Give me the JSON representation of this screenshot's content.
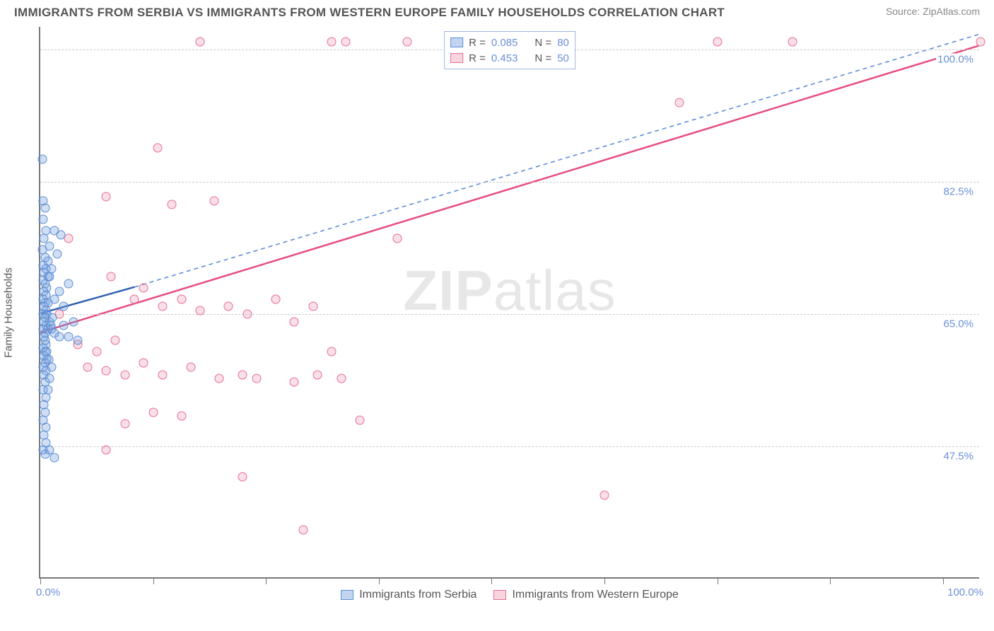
{
  "header": {
    "title": "IMMIGRANTS FROM SERBIA VS IMMIGRANTS FROM WESTERN EUROPE FAMILY HOUSEHOLDS CORRELATION CHART",
    "source_prefix": "Source: ",
    "source_name": "ZipAtlas.com"
  },
  "watermark": {
    "part1": "ZIP",
    "part2": "atlas"
  },
  "axes": {
    "y_title": "Family Households",
    "x_min_label": "0.0%",
    "x_max_label": "100.0%",
    "xlim": [
      0,
      100
    ],
    "ylim": [
      30,
      103
    ],
    "xtick_positions": [
      0,
      12,
      24,
      36,
      48,
      60,
      72,
      84,
      96
    ],
    "y_gridlines": [
      {
        "value": 47.5,
        "label": "47.5%"
      },
      {
        "value": 65.0,
        "label": "65.0%"
      },
      {
        "value": 82.5,
        "label": "82.5%"
      },
      {
        "value": 100.0,
        "label": "100.0%"
      }
    ],
    "grid_color": "#cccccc",
    "axis_color": "#777777",
    "label_color": "#6a8fd8"
  },
  "legend_top": {
    "rows": [
      {
        "swatch": "blue",
        "r_label": "R =",
        "r_value": "0.085",
        "n_label": "N =",
        "n_value": "80"
      },
      {
        "swatch": "pink",
        "r_label": "R =",
        "r_value": "0.453",
        "n_label": "N =",
        "n_value": "50"
      }
    ]
  },
  "legend_bottom": {
    "items": [
      {
        "swatch": "blue",
        "label": "Immigrants from Serbia"
      },
      {
        "swatch": "pink",
        "label": "Immigrants from Western Europe"
      }
    ]
  },
  "series": {
    "blue": {
      "color_fill": "rgba(120,160,220,0.35)",
      "color_stroke": "#5b8ed6",
      "marker_radius": 6.5,
      "trend_solid": {
        "x1": 0,
        "y1": 65.0,
        "x2": 10,
        "y2": 68.5,
        "stroke": "#2f5fb0",
        "width": 2.5
      },
      "trend_dash": {
        "x1": 10,
        "y1": 68.5,
        "x2": 100,
        "y2": 102.0,
        "stroke": "#5b8ed6",
        "width": 1.6,
        "dash": "6 5"
      },
      "points": [
        [
          0.2,
          85.5
        ],
        [
          0.3,
          80.0
        ],
        [
          0.5,
          79.0
        ],
        [
          0.3,
          77.5
        ],
        [
          0.6,
          76.0
        ],
        [
          0.4,
          75.0
        ],
        [
          0.2,
          73.5
        ],
        [
          0.5,
          72.5
        ],
        [
          0.3,
          71.5
        ],
        [
          0.6,
          71.0
        ],
        [
          0.4,
          70.5
        ],
        [
          0.8,
          70.0
        ],
        [
          0.3,
          69.5
        ],
        [
          0.5,
          69.0
        ],
        [
          0.7,
          68.5
        ],
        [
          0.4,
          68.0
        ],
        [
          0.6,
          67.5
        ],
        [
          0.3,
          67.0
        ],
        [
          0.5,
          66.5
        ],
        [
          0.8,
          66.5
        ],
        [
          0.4,
          66.0
        ],
        [
          0.6,
          65.5
        ],
        [
          0.3,
          65.0
        ],
        [
          0.7,
          65.0
        ],
        [
          0.5,
          64.5
        ],
        [
          0.4,
          64.0
        ],
        [
          1.0,
          64.0
        ],
        [
          0.6,
          63.5
        ],
        [
          0.3,
          63.0
        ],
        [
          0.8,
          63.0
        ],
        [
          1.2,
          63.0
        ],
        [
          0.5,
          62.5
        ],
        [
          1.5,
          62.5
        ],
        [
          0.4,
          62.0
        ],
        [
          2.0,
          62.0
        ],
        [
          2.5,
          63.5
        ],
        [
          3.0,
          62.0
        ],
        [
          3.5,
          64.0
        ],
        [
          4.0,
          61.5
        ],
        [
          0.6,
          61.0
        ],
        [
          0.3,
          60.5
        ],
        [
          0.5,
          60.0
        ],
        [
          0.4,
          59.5
        ],
        [
          0.7,
          59.0
        ],
        [
          0.5,
          58.5
        ],
        [
          0.3,
          58.0
        ],
        [
          0.6,
          57.5
        ],
        [
          0.4,
          57.0
        ],
        [
          0.5,
          56.0
        ],
        [
          0.3,
          55.0
        ],
        [
          0.6,
          54.0
        ],
        [
          0.4,
          53.0
        ],
        [
          0.5,
          52.0
        ],
        [
          0.3,
          51.0
        ],
        [
          0.6,
          50.0
        ],
        [
          1.5,
          67.0
        ],
        [
          2.0,
          68.0
        ],
        [
          2.5,
          66.0
        ],
        [
          3.0,
          69.0
        ],
        [
          1.0,
          70.0
        ],
        [
          1.2,
          71.0
        ],
        [
          1.8,
          73.0
        ],
        [
          2.2,
          75.5
        ],
        [
          0.8,
          72.0
        ],
        [
          1.0,
          74.0
        ],
        [
          1.5,
          76.0
        ],
        [
          0.3,
          47.0
        ],
        [
          0.5,
          46.5
        ],
        [
          1.0,
          47.0
        ],
        [
          1.5,
          46.0
        ],
        [
          0.4,
          49.0
        ],
        [
          0.6,
          48.0
        ],
        [
          0.8,
          55.0
        ],
        [
          1.0,
          56.5
        ],
        [
          1.2,
          58.0
        ],
        [
          0.5,
          61.5
        ],
        [
          0.7,
          60.0
        ],
        [
          0.9,
          59.0
        ],
        [
          1.1,
          63.5
        ],
        [
          1.3,
          64.5
        ]
      ]
    },
    "pink": {
      "color_fill": "rgba(235,150,175,0.30)",
      "color_stroke": "#e86d94",
      "marker_radius": 6.5,
      "trend_solid": {
        "x1": 0,
        "y1": 62.5,
        "x2": 100,
        "y2": 100.5,
        "stroke": "#e64d7d",
        "width": 2.5
      },
      "points": [
        [
          17.0,
          101.0
        ],
        [
          31.0,
          101.0
        ],
        [
          32.5,
          101.0
        ],
        [
          39.0,
          101.0
        ],
        [
          72.0,
          101.0
        ],
        [
          80.0,
          101.0
        ],
        [
          100.0,
          101.0
        ],
        [
          68.0,
          93.0
        ],
        [
          12.5,
          87.0
        ],
        [
          7.0,
          80.5
        ],
        [
          14.0,
          79.5
        ],
        [
          18.5,
          80.0
        ],
        [
          3.0,
          75.0
        ],
        [
          7.5,
          70.0
        ],
        [
          10.0,
          67.0
        ],
        [
          11.0,
          68.5
        ],
        [
          13.0,
          66.0
        ],
        [
          15.0,
          67.0
        ],
        [
          17.0,
          65.5
        ],
        [
          20.0,
          66.0
        ],
        [
          22.0,
          65.0
        ],
        [
          25.0,
          67.0
        ],
        [
          27.0,
          64.0
        ],
        [
          29.0,
          66.0
        ],
        [
          38.0,
          75.0
        ],
        [
          31.0,
          60.0
        ],
        [
          4.0,
          61.0
        ],
        [
          6.0,
          60.0
        ],
        [
          8.0,
          61.5
        ],
        [
          5.0,
          58.0
        ],
        [
          7.0,
          57.5
        ],
        [
          9.0,
          57.0
        ],
        [
          11.0,
          58.5
        ],
        [
          13.0,
          57.0
        ],
        [
          16.0,
          58.0
        ],
        [
          19.0,
          56.5
        ],
        [
          21.5,
          57.0
        ],
        [
          23.0,
          56.5
        ],
        [
          27.0,
          56.0
        ],
        [
          29.5,
          57.0
        ],
        [
          32.0,
          56.5
        ],
        [
          34.0,
          51.0
        ],
        [
          9.0,
          50.5
        ],
        [
          12.0,
          52.0
        ],
        [
          15.0,
          51.5
        ],
        [
          7.0,
          47.0
        ],
        [
          21.5,
          43.5
        ],
        [
          60.0,
          41.0
        ],
        [
          28.0,
          36.5
        ],
        [
          2.0,
          65.0
        ]
      ]
    }
  },
  "style": {
    "background": "#ffffff",
    "title_color": "#555555",
    "title_fontsize": 17,
    "axis_label_fontsize": 15,
    "legend_fontsize": 15,
    "bottom_legend_fontsize": 16
  }
}
